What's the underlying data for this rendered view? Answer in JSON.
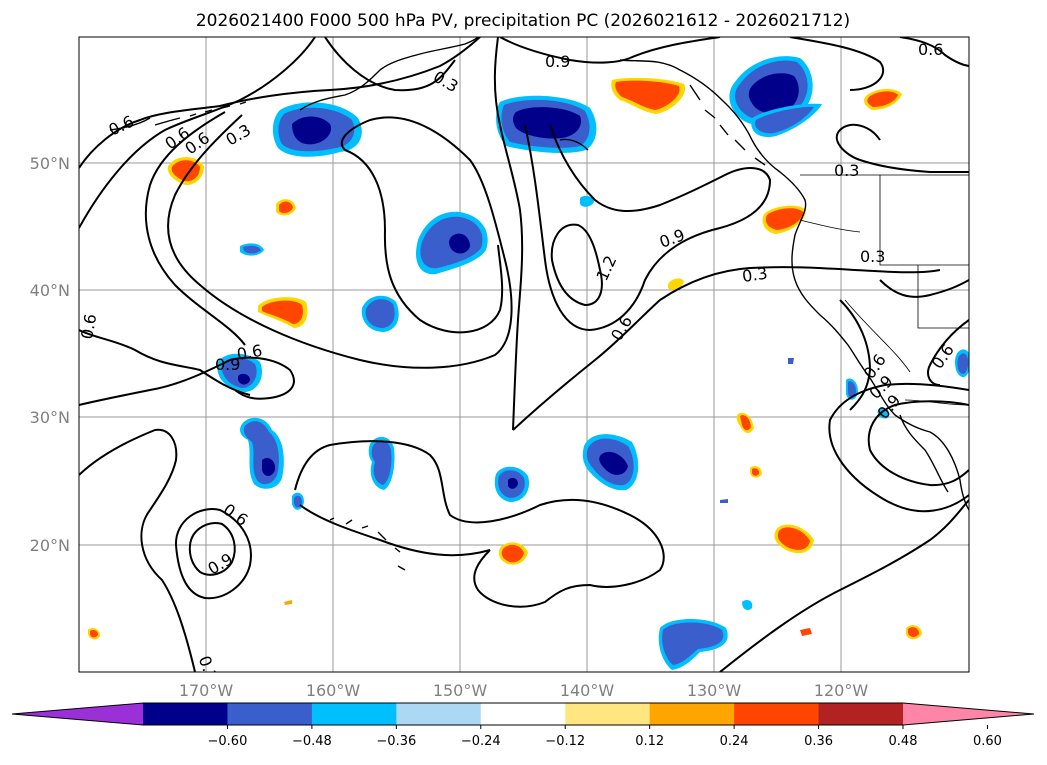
{
  "title": "2026021400 F000 500 hPa PV, precipitation PC (2026021612 - 2026021712)",
  "lat_labels": [
    "50°N",
    "40°N",
    "30°N",
    "20°N"
  ],
  "lon_labels": [
    "170°W",
    "160°W",
    "150°W",
    "140°W",
    "130°W",
    "120°W"
  ],
  "contour_labels": [
    "0.6",
    "0.3",
    "0.3",
    "0.9",
    "0.6",
    "0.3",
    "0.9",
    "1.2",
    "0.6",
    "0.9",
    "0.3",
    "0.3",
    "0.6",
    "0.6",
    "0.9",
    "0.6",
    "0.9",
    "0.6",
    "0.3",
    "0.6",
    "0.6",
    "0.9",
    "0.6"
  ],
  "colorbar": {
    "tick_labels": [
      "−0.60",
      "−0.48",
      "−0.36",
      "−0.24",
      "−0.12",
      "0.12",
      "0.24",
      "0.36",
      "0.48",
      "0.60"
    ],
    "colors": [
      "#9b30d9",
      "#00008b",
      "#3a5fcd",
      "#00bfff",
      "#add8f4",
      "#ffffff",
      "#ffe680",
      "#ffa500",
      "#ff4500",
      "#b22222",
      "#ff85a8"
    ]
  },
  "colors": {
    "neg_strong": "#00008b",
    "neg_mid": "#3a5fcd",
    "neg_light": "#00bfff",
    "pos_light": "#ffd700",
    "pos_mid": "#ffa500",
    "pos_strong": "#ff4500"
  }
}
